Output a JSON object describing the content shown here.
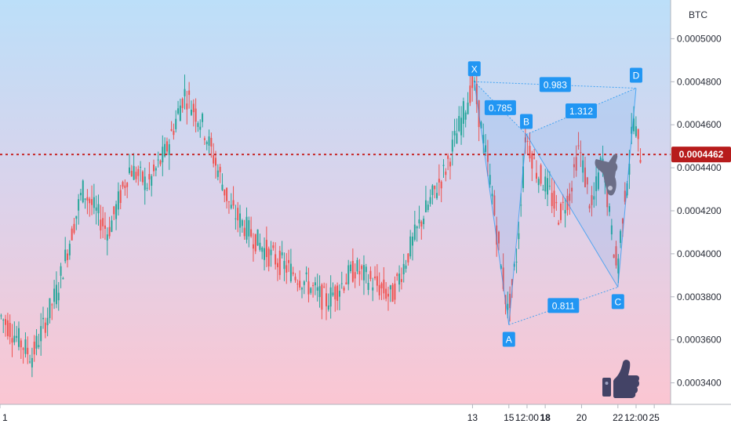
{
  "chart_data": {
    "type": "candlestick",
    "currency_label": "BTC",
    "current_price_label": "0.0004462",
    "current_price": 0.0004462,
    "ylim": [
      0.00033,
      0.000518
    ],
    "y_ticks": [
      {
        "value": 0.00034,
        "label": "0.0003400"
      },
      {
        "value": 0.00036,
        "label": "0.0003600"
      },
      {
        "value": 0.00038,
        "label": "0.0003800"
      },
      {
        "value": 0.0004,
        "label": "0.0004000"
      },
      {
        "value": 0.00042,
        "label": "0.0004200"
      },
      {
        "value": 0.00044,
        "label": "0.0004400"
      },
      {
        "value": 0.00046,
        "label": "0.0004600"
      },
      {
        "value": 0.00048,
        "label": "0.0004800"
      },
      {
        "value": 0.0005,
        "label": "0.0005000"
      }
    ],
    "x_ticks": [
      {
        "pos": 0.0,
        "label": "1",
        "bold": false
      },
      {
        "pos": 13.0,
        "label": "13",
        "bold": false
      },
      {
        "pos": 14.0,
        "label": "15",
        "bold": false
      },
      {
        "pos": 14.5,
        "label": "12:00",
        "bold": false
      },
      {
        "pos": 15.0,
        "label": "18",
        "bold": true
      },
      {
        "pos": 16.0,
        "label": "20",
        "bold": false
      },
      {
        "pos": 17.0,
        "label": "22",
        "bold": false
      },
      {
        "pos": 17.5,
        "label": "12:00",
        "bold": false
      },
      {
        "pos": 18.0,
        "label": "25",
        "bold": false
      }
    ],
    "x_range": [
      0.0,
      18.45
    ],
    "pattern_points": [
      {
        "name": "X",
        "x": 13.05,
        "y": 0.00048
      },
      {
        "name": "A",
        "x": 14.0,
        "y": 0.000367
      },
      {
        "name": "B",
        "x": 14.48,
        "y": 0.0004555
      },
      {
        "name": "C",
        "x": 17.0,
        "y": 0.0003845
      },
      {
        "name": "D",
        "x": 17.5,
        "y": 0.000477
      }
    ],
    "ratios": [
      {
        "label": "0.785",
        "from": "X",
        "to": "B"
      },
      {
        "label": "0.983",
        "from": "X",
        "to": "D"
      },
      {
        "label": "1.312",
        "from": "B",
        "to": "D"
      },
      {
        "label": "0.811",
        "from": "A",
        "to": "C"
      }
    ],
    "colors": {
      "up": "#26a69a",
      "down": "#ef5350",
      "pattern": "#2196f3",
      "price_line": "#c62828",
      "icon": "#6b6e87"
    }
  }
}
